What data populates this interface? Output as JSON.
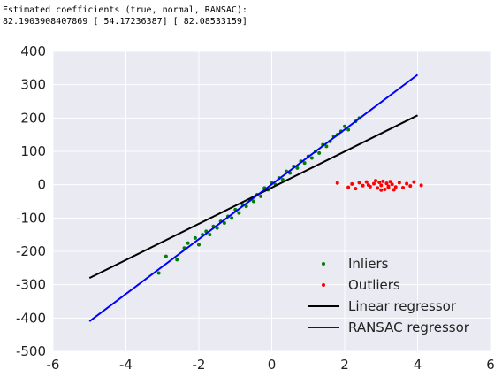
{
  "output_text": [
    "Estimated coefficients (true, normal, RANSAC):",
    "82.1903908407869 [ 54.17236387] [ 82.08533159]"
  ],
  "chart_data": {
    "type": "scatter",
    "xlim": [
      -6,
      6
    ],
    "ylim": [
      -500,
      400
    ],
    "xticks": [
      -6,
      -4,
      -2,
      0,
      2,
      4,
      6
    ],
    "yticks": [
      -500,
      -400,
      -300,
      -200,
      -100,
      0,
      100,
      200,
      300,
      400
    ],
    "grid": true,
    "legend": "lower right",
    "series": [
      {
        "name": "Inliers",
        "kind": "points",
        "color": "#008000",
        "x": [
          -3.1,
          -2.9,
          -2.6,
          -2.4,
          -2.3,
          -2.1,
          -2.0,
          -1.9,
          -1.8,
          -1.7,
          -1.6,
          -1.5,
          -1.4,
          -1.3,
          -1.2,
          -1.1,
          -1.0,
          -0.9,
          -0.8,
          -0.7,
          -0.6,
          -0.5,
          -0.4,
          -0.3,
          -0.2,
          -0.1,
          0.0,
          0.1,
          0.2,
          0.3,
          0.4,
          0.5,
          0.6,
          0.7,
          0.8,
          0.9,
          1.0,
          1.1,
          1.2,
          1.3,
          1.4,
          1.5,
          1.6,
          1.7,
          1.8,
          1.9,
          2.0,
          2.1,
          2.3,
          2.4
        ],
        "values": [
          -265,
          -215,
          -225,
          -190,
          -175,
          -160,
          -180,
          -150,
          -140,
          -150,
          -125,
          -130,
          -110,
          -115,
          -95,
          -100,
          -75,
          -85,
          -60,
          -65,
          -45,
          -50,
          -30,
          -35,
          -10,
          -15,
          5,
          0,
          20,
          15,
          40,
          35,
          55,
          50,
          70,
          65,
          85,
          80,
          100,
          95,
          120,
          115,
          130,
          145,
          150,
          160,
          175,
          165,
          190,
          200
        ]
      },
      {
        "name": "Outliers",
        "kind": "points",
        "color": "#ff0000",
        "x": [
          1.8,
          2.1,
          2.2,
          2.3,
          2.4,
          2.5,
          2.6,
          2.7,
          2.8,
          2.9,
          2.95,
          3.0,
          3.05,
          3.1,
          3.15,
          3.2,
          3.25,
          3.3,
          3.4,
          3.5,
          3.6,
          3.7,
          3.8,
          3.9,
          4.1,
          2.85,
          3.0,
          3.2,
          3.35,
          2.65
        ],
        "values": [
          5,
          -8,
          2,
          -12,
          6,
          -3,
          8,
          -6,
          3,
          -10,
          7,
          -2,
          10,
          -14,
          4,
          -5,
          9,
          1,
          -7,
          6,
          -9,
          3,
          -4,
          8,
          -2,
          12,
          -16,
          -9,
          -15,
          -1
        ]
      },
      {
        "name": "Linear regressor",
        "kind": "line",
        "color": "#000000",
        "x": [
          -5,
          4
        ],
        "values": [
          -280,
          208
        ]
      },
      {
        "name": "RANSAC regressor",
        "kind": "line",
        "color": "#0000ff",
        "x": [
          -5,
          4
        ],
        "values": [
          -410,
          330
        ]
      }
    ]
  }
}
